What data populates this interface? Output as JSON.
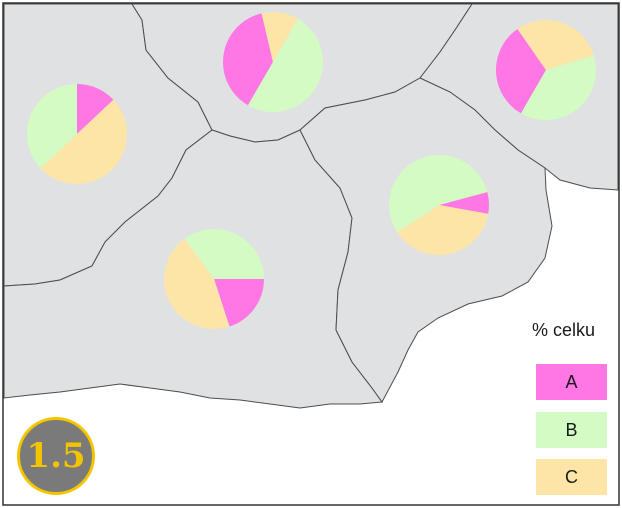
{
  "legend": {
    "title": "% celku",
    "items": [
      {
        "label": "A",
        "color": "#ff77e4"
      },
      {
        "label": "B",
        "color": "#d4fbc4"
      },
      {
        "label": "C",
        "color": "#fde5a8"
      }
    ]
  },
  "badge": {
    "text": "1.5",
    "fill": "#7a7a7a",
    "ring": "#f2c500"
  },
  "map": {
    "region_fill": "#e0e1e2",
    "border_color": "#4d4d4d",
    "background": "#ffffff"
  },
  "pies": [
    {
      "region": "west",
      "A": 13,
      "B": 37,
      "C": 50
    },
    {
      "region": "north",
      "A": 38,
      "B": 50,
      "C": 12
    },
    {
      "region": "northeast",
      "A": 32,
      "B": 38,
      "C": 30
    },
    {
      "region": "center",
      "A": 20,
      "B": 35,
      "C": 45
    },
    {
      "region": "east",
      "A": 7,
      "B": 55,
      "C": 38
    }
  ]
}
